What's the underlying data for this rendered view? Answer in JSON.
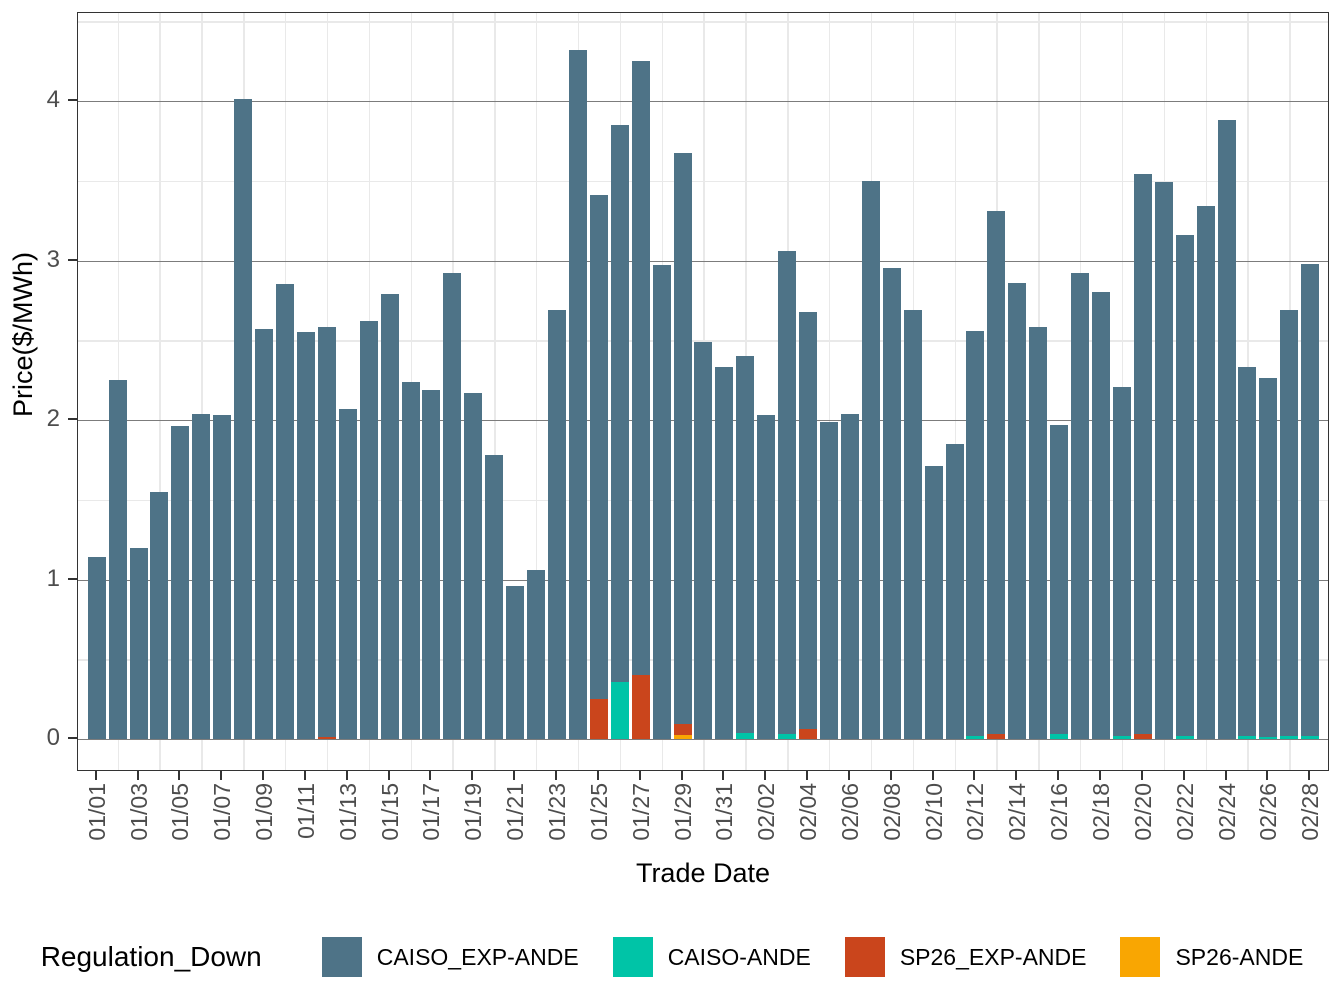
{
  "y_axis": {
    "title": "Price($/MWh)",
    "tick_labels": [
      "0",
      "1",
      "2",
      "3",
      "4"
    ],
    "tick_values": [
      0,
      1,
      2,
      3,
      4
    ],
    "minor_values": [
      0.5,
      1.5,
      2.5,
      3.5,
      4.5
    ],
    "text_color": "#4d4d4d"
  },
  "x_axis": {
    "title": "Trade Date",
    "tick_labels": [
      "01/01",
      "01/03",
      "01/05",
      "01/07",
      "01/09",
      "01/11",
      "01/13",
      "01/15",
      "01/17",
      "01/19",
      "01/21",
      "01/23",
      "01/25",
      "01/27",
      "01/29",
      "01/31",
      "02/02",
      "02/04",
      "02/06",
      "02/08",
      "02/10",
      "02/12",
      "02/14",
      "02/16",
      "02/18",
      "02/20",
      "02/22",
      "02/24",
      "02/26",
      "02/28"
    ],
    "text_color": "#4d4d4d"
  },
  "legend": {
    "title": "Regulation_Down",
    "items": [
      {
        "label": "CAISO_EXP-ANDE",
        "color": "#4e7387"
      },
      {
        "label": "CAISO-ANDE",
        "color": "#00c4a7"
      },
      {
        "label": "SP26_EXP-ANDE",
        "color": "#ca451c"
      },
      {
        "label": "SP26-ANDE",
        "color": "#f9a602"
      }
    ]
  },
  "chart_data": {
    "type": "bar",
    "stacked": true,
    "title": "",
    "xlabel": "Trade Date",
    "ylabel": "Price($/MWh)",
    "ylim": [
      0,
      4.55
    ],
    "grid": "major-horizontal dark, minor light, vertical minor only",
    "legend_position": "bottom",
    "x": [
      "01/01",
      "01/02",
      "01/03",
      "01/04",
      "01/05",
      "01/06",
      "01/07",
      "01/08",
      "01/09",
      "01/10",
      "01/11",
      "01/12",
      "01/13",
      "01/14",
      "01/15",
      "01/16",
      "01/17",
      "01/18",
      "01/19",
      "01/20",
      "01/21",
      "01/22",
      "01/23",
      "01/24",
      "01/25",
      "01/26",
      "01/27",
      "01/28",
      "01/29",
      "01/30",
      "01/31",
      "02/01",
      "02/02",
      "02/03",
      "02/04",
      "02/05",
      "02/06",
      "02/07",
      "02/08",
      "02/09",
      "02/10",
      "02/11",
      "02/12",
      "02/13",
      "02/14",
      "02/15",
      "02/16",
      "02/17",
      "02/18",
      "02/19",
      "02/20",
      "02/21",
      "02/22",
      "02/23",
      "02/24",
      "02/25",
      "02/26",
      "02/27",
      "02/28"
    ],
    "series": [
      {
        "name": "CAISO_EXP-ANDE",
        "color": "#4e7387",
        "values": [
          1.14,
          2.25,
          1.2,
          1.55,
          1.96,
          2.04,
          2.03,
          4.01,
          2.57,
          2.85,
          2.55,
          2.57,
          2.07,
          2.62,
          2.79,
          2.24,
          2.19,
          2.92,
          2.17,
          1.78,
          0.96,
          1.06,
          2.69,
          4.32,
          3.16,
          3.49,
          3.85,
          2.97,
          3.58,
          2.49,
          2.33,
          2.36,
          2.03,
          3.03,
          2.62,
          1.99,
          2.04,
          3.5,
          2.95,
          2.69,
          1.71,
          1.85,
          2.54,
          3.28,
          2.86,
          2.58,
          1.94,
          2.92,
          2.8,
          2.19,
          3.51,
          3.49,
          3.14,
          3.34,
          3.88,
          2.31,
          2.25,
          2.67,
          2.96
        ]
      },
      {
        "name": "CAISO-ANDE",
        "color": "#00c4a7",
        "values": [
          0,
          0,
          0,
          0,
          0,
          0,
          0,
          0,
          0,
          0,
          0,
          0,
          0,
          0,
          0,
          0,
          0,
          0,
          0,
          0,
          0,
          0,
          0,
          0,
          0,
          0.36,
          0,
          0,
          0,
          0,
          0,
          0.04,
          0,
          0.03,
          0,
          0,
          0,
          0,
          0,
          0,
          0,
          0,
          0.02,
          0,
          0,
          0,
          0.03,
          0,
          0,
          0.02,
          0,
          0,
          0.02,
          0,
          0,
          0.02,
          0.015,
          0.02,
          0.02
        ]
      },
      {
        "name": "SP26_EXP-ANDE",
        "color": "#ca451c",
        "values": [
          0,
          0,
          0,
          0,
          0,
          0,
          0,
          0,
          0,
          0,
          0,
          0.015,
          0,
          0,
          0,
          0,
          0,
          0,
          0,
          0,
          0,
          0,
          0,
          0,
          0.25,
          0,
          0.4,
          0,
          0.07,
          0,
          0,
          0,
          0,
          0,
          0.06,
          0,
          0,
          0,
          0,
          0,
          0,
          0,
          0,
          0.03,
          0,
          0,
          0,
          0,
          0,
          0,
          0.03,
          0,
          0,
          0,
          0,
          0,
          0,
          0,
          0
        ]
      },
      {
        "name": "SP26-ANDE",
        "color": "#f9a602",
        "values": [
          0,
          0,
          0,
          0,
          0,
          0,
          0,
          0,
          0,
          0,
          0,
          0,
          0,
          0,
          0,
          0,
          0,
          0,
          0,
          0,
          0,
          0,
          0,
          0,
          0,
          0,
          0,
          0,
          0.025,
          0,
          0,
          0,
          0,
          0,
          0,
          0,
          0,
          0,
          0,
          0,
          0,
          0,
          0,
          0,
          0,
          0,
          0,
          0,
          0,
          0,
          0,
          0,
          0,
          0,
          0,
          0,
          0,
          0,
          0
        ]
      }
    ]
  }
}
